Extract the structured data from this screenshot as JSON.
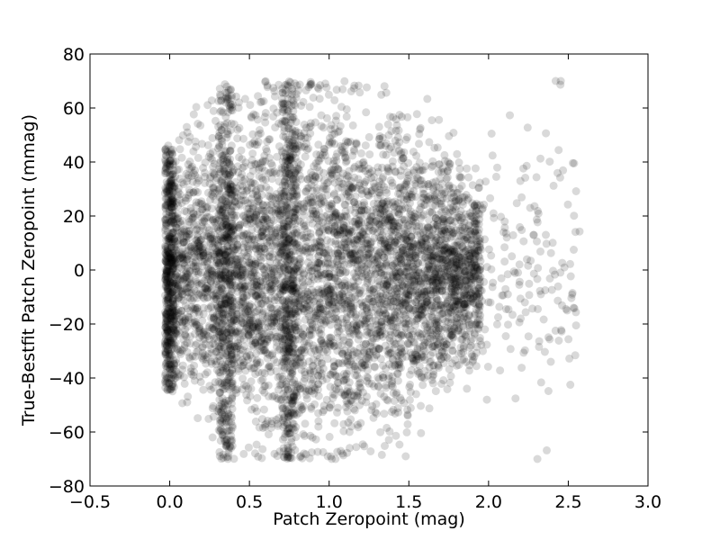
{
  "chart_data": {
    "type": "scatter",
    "title": "",
    "xlabel": "Patch Zeropoint (mag)",
    "ylabel": "True-Bestfit Patch Zeropoint (mmag)",
    "xlim": [
      -0.5,
      3.0
    ],
    "ylim": [
      -80,
      80
    ],
    "xticks": [
      -0.5,
      0.0,
      0.5,
      1.0,
      1.5,
      2.0,
      2.5,
      3.0
    ],
    "xtick_labels": [
      "−0.5",
      "0.0",
      "0.5",
      "1.0",
      "1.5",
      "2.0",
      "2.5",
      "3.0"
    ],
    "yticks": [
      -80,
      -60,
      -40,
      -20,
      0,
      20,
      40,
      60,
      80
    ],
    "ytick_labels": [
      "−80",
      "−60",
      "−40",
      "−20",
      "0",
      "20",
      "40",
      "60",
      "80"
    ],
    "grid": false,
    "marker": {
      "color": "#000000",
      "alpha": 0.15,
      "shape": "circle"
    },
    "distribution": {
      "description": "dense cloud of semi-transparent points; x mostly 0.0-2.0, y clipped near ±70 mmag; sparse tail at x 2.0-2.65",
      "dense_x_range": [
        -0.05,
        1.95
      ],
      "sparse_x_range": [
        1.95,
        2.65
      ],
      "y_clip": [
        -70,
        70
      ],
      "vertical_streaks_x": [
        0.0,
        0.35,
        0.75
      ]
    }
  }
}
